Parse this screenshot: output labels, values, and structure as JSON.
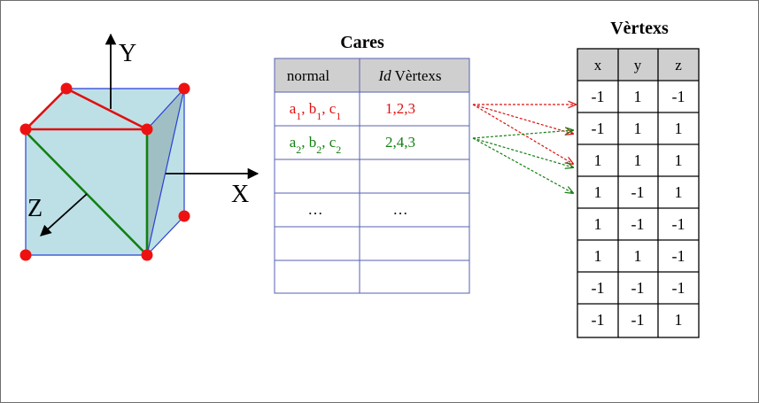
{
  "axes": {
    "x": "X",
    "y": "Y",
    "z": "Z"
  },
  "faces_table": {
    "title": "Cares",
    "headers": {
      "normal": "normal",
      "vertex_ids_italic": "Id",
      "vertex_ids_rest": "Vèrtexs"
    },
    "rows": [
      {
        "normal": [
          "a",
          "1",
          ", b",
          "1",
          ", c",
          "1"
        ],
        "ids": "1,2,3",
        "color": "#e01010"
      },
      {
        "normal": [
          "a",
          "2",
          ", b",
          "2",
          ", c",
          "2"
        ],
        "ids": "2,4,3",
        "color": "#128012"
      },
      {
        "normal": [],
        "ids": "",
        "color": "#000000"
      },
      {
        "normal": [
          "…"
        ],
        "ids": "…",
        "color": "#000000"
      },
      {
        "normal": [],
        "ids": "",
        "color": "#000000"
      },
      {
        "normal": [],
        "ids": "",
        "color": "#000000"
      }
    ]
  },
  "vertex_table": {
    "title": "Vèrtexs",
    "headers": [
      "x",
      "y",
      "z"
    ],
    "rows": [
      [
        "-1",
        "1",
        "-1"
      ],
      [
        "-1",
        "1",
        "1"
      ],
      [
        "1",
        "1",
        "1"
      ],
      [
        "1",
        "-1",
        "1"
      ],
      [
        "1",
        "-1",
        "-1"
      ],
      [
        "1",
        "1",
        "-1"
      ],
      [
        "-1",
        "-1",
        "-1"
      ],
      [
        "-1",
        "-1",
        "1"
      ]
    ]
  },
  "colors": {
    "cube_fill": "#bde0e6",
    "cube_side_fill": "#9fbfc4",
    "cube_edge": "#2b3fd6",
    "vertex_dot": "#ee1111",
    "face1": "#e01010",
    "face2": "#128012",
    "header_fill": "#cfcfcf",
    "faces_table_border": "#5560b0"
  }
}
